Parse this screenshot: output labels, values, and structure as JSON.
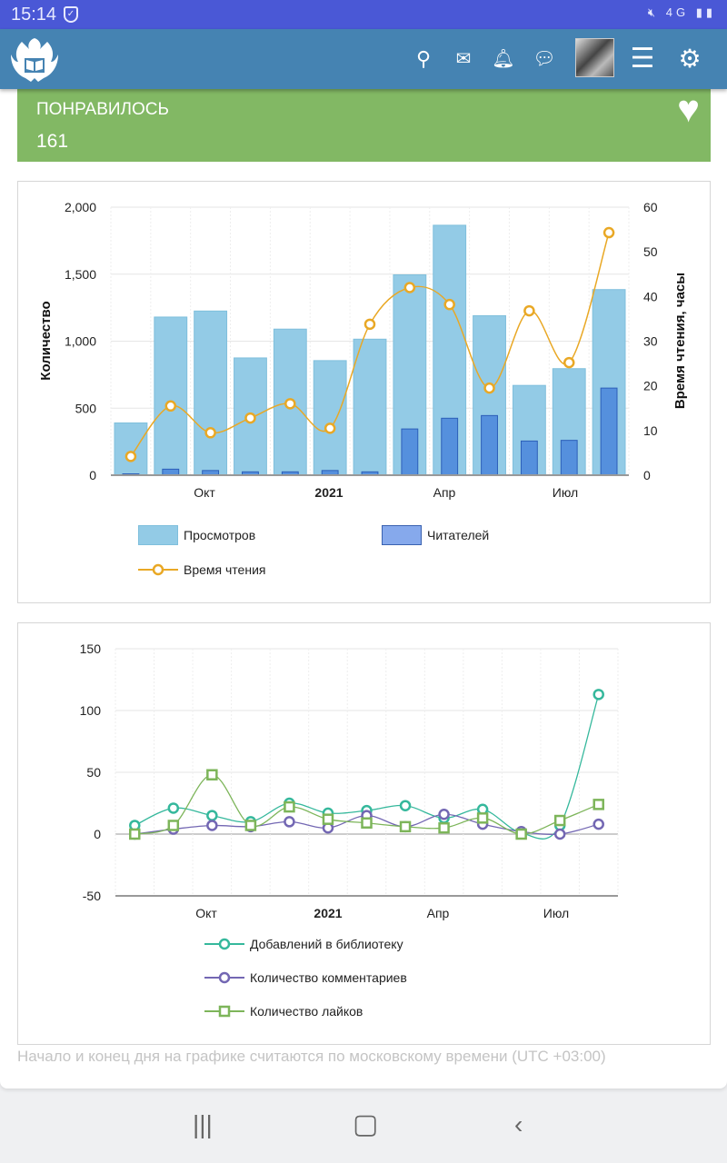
{
  "status": {
    "time": "15:14",
    "network": "4G"
  },
  "header": {
    "icons": [
      "logo-eagle-book",
      "search-icon",
      "mail-icon",
      "bell-icon",
      "chat-icon",
      "avatar",
      "menu-icon",
      "gear-icon"
    ]
  },
  "likes": {
    "label": "ПОНРАВИЛОСЬ",
    "value": "161",
    "color": "#82b864"
  },
  "chart_data": [
    {
      "type": "bar",
      "x_ticks": [
        "Окт",
        "2021",
        "Апр",
        "Июл"
      ],
      "ylabel": "Количество",
      "y2label": "Время чтения, часы",
      "ylim": [
        0,
        2000
      ],
      "yticks": [
        "0",
        "500",
        "1,000",
        "1,500",
        "2,000"
      ],
      "y2lim": [
        0,
        60
      ],
      "y2ticks": [
        "0",
        "10",
        "20",
        "30",
        "40",
        "50",
        "60"
      ],
      "series": [
        {
          "name": "Просмотров",
          "type": "bar",
          "color": "#93cbe6",
          "values": [
            390,
            1180,
            1225,
            875,
            1090,
            855,
            1015,
            1495,
            1865,
            1190,
            670,
            795,
            1385
          ]
        },
        {
          "name": "Читателей",
          "type": "bar",
          "color": "#5590dd",
          "values": [
            10,
            45,
            35,
            25,
            25,
            35,
            25,
            345,
            425,
            445,
            255,
            260,
            650
          ]
        },
        {
          "name": "Время чтения",
          "type": "line",
          "axis": "right",
          "color": "#e9a825",
          "values": [
            4.2,
            15.5,
            9.5,
            12.8,
            16,
            10.5,
            33.8,
            42,
            38.2,
            19.5,
            36.8,
            25.2,
            54.3
          ]
        }
      ],
      "grid": true,
      "legend": "bottom"
    },
    {
      "type": "line",
      "x_ticks": [
        "Окт",
        "2021",
        "Апр",
        "Июл"
      ],
      "ylim": [
        -50,
        150
      ],
      "yticks": [
        "-50",
        "0",
        "50",
        "100",
        "150"
      ],
      "series": [
        {
          "name": "Добавлений в библиотеку",
          "marker": "circle",
          "color": "#35b89c",
          "values": [
            7,
            21,
            15,
            10,
            25,
            17,
            19,
            23,
            13,
            20,
            1,
            7,
            113
          ]
        },
        {
          "name": "Количество комментариев",
          "marker": "circle",
          "color": "#7367b3",
          "values": [
            0,
            4,
            7,
            6,
            10,
            5,
            15,
            6,
            16,
            8,
            2,
            0,
            8
          ]
        },
        {
          "name": "Количество лайков",
          "marker": "square",
          "color": "#7db55a",
          "values": [
            0,
            7,
            48,
            7,
            22,
            12,
            9,
            6,
            5,
            13,
            0,
            11,
            24
          ]
        }
      ],
      "grid": true,
      "legend": "bottom"
    }
  ],
  "note": "Начало и конец дня на графике считаются по московскому времени (UTC +03:00)"
}
